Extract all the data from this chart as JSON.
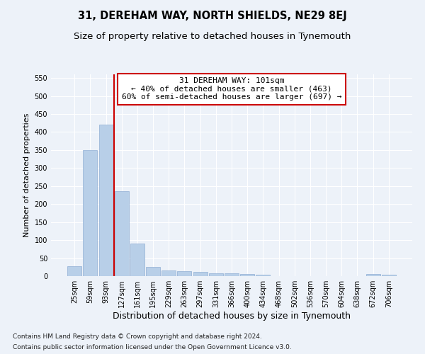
{
  "title": "31, DEREHAM WAY, NORTH SHIELDS, NE29 8EJ",
  "subtitle": "Size of property relative to detached houses in Tynemouth",
  "xlabel": "Distribution of detached houses by size in Tynemouth",
  "ylabel": "Number of detached properties",
  "categories": [
    "25sqm",
    "59sqm",
    "93sqm",
    "127sqm",
    "161sqm",
    "195sqm",
    "229sqm",
    "263sqm",
    "297sqm",
    "331sqm",
    "366sqm",
    "400sqm",
    "434sqm",
    "468sqm",
    "502sqm",
    "536sqm",
    "570sqm",
    "604sqm",
    "638sqm",
    "672sqm",
    "706sqm"
  ],
  "values": [
    28,
    350,
    420,
    235,
    90,
    25,
    16,
    14,
    11,
    7,
    7,
    5,
    4,
    0,
    0,
    0,
    0,
    0,
    0,
    5,
    4
  ],
  "bar_color": "#b8cfe8",
  "bar_edge_color": "#90afd4",
  "vline_x": 2.5,
  "vline_color": "#cc0000",
  "annotation_text": "31 DEREHAM WAY: 101sqm\n← 40% of detached houses are smaller (463)\n60% of semi-detached houses are larger (697) →",
  "annotation_box_color": "#ffffff",
  "annotation_box_edge_color": "#cc0000",
  "ylim": [
    0,
    560
  ],
  "yticks": [
    0,
    50,
    100,
    150,
    200,
    250,
    300,
    350,
    400,
    450,
    500,
    550
  ],
  "footnote1": "Contains HM Land Registry data © Crown copyright and database right 2024.",
  "footnote2": "Contains public sector information licensed under the Open Government Licence v3.0.",
  "bg_color": "#edf2f9",
  "plot_bg_color": "#edf2f9",
  "title_fontsize": 10.5,
  "subtitle_fontsize": 9.5,
  "xlabel_fontsize": 9,
  "ylabel_fontsize": 8,
  "tick_fontsize": 7,
  "footnote_fontsize": 6.5,
  "annotation_fontsize": 8
}
